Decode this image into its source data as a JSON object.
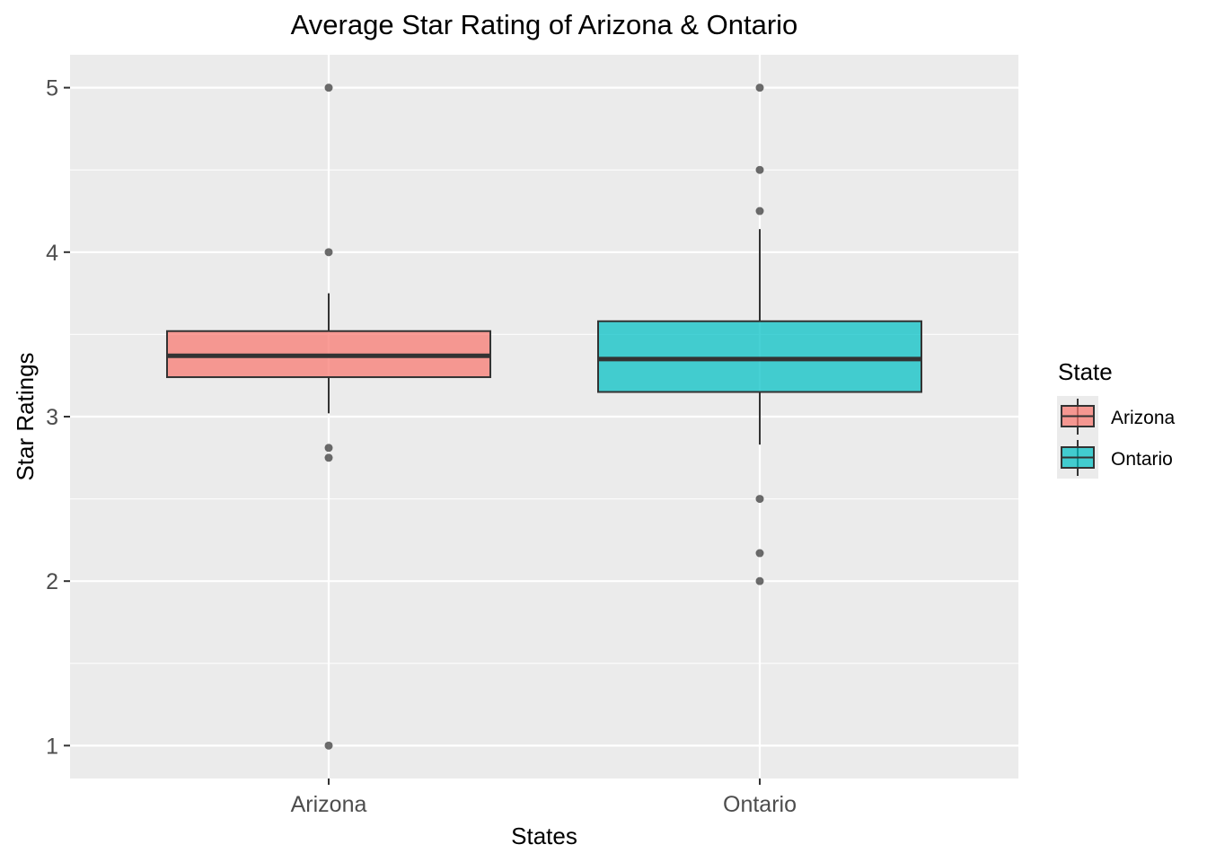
{
  "chart_data": {
    "type": "boxplot",
    "title": "Average Star Rating of Arizona & Ontario",
    "xlabel": "States",
    "ylabel": "Star Ratings",
    "ylim": [
      0.8,
      5.2
    ],
    "yticks": [
      1,
      2,
      3,
      4,
      5
    ],
    "categories": [
      "Arizona",
      "Ontario"
    ],
    "grid": true,
    "legend": {
      "title": "State",
      "placement": "right",
      "entries": [
        "Arizona",
        "Ontario"
      ]
    },
    "series": [
      {
        "name": "Arizona",
        "color": "#F8766D",
        "q1": 3.24,
        "median": 3.37,
        "q3": 3.52,
        "whisker_low": 3.02,
        "whisker_high": 3.75,
        "outliers": [
          5.0,
          4.0,
          2.81,
          2.75,
          1.0
        ]
      },
      {
        "name": "Ontario",
        "color": "#00BFC4",
        "q1": 3.15,
        "median": 3.35,
        "q3": 3.58,
        "whisker_low": 2.83,
        "whisker_high": 4.14,
        "outliers": [
          5.0,
          4.5,
          4.25,
          2.5,
          2.17,
          2.0
        ]
      }
    ]
  }
}
